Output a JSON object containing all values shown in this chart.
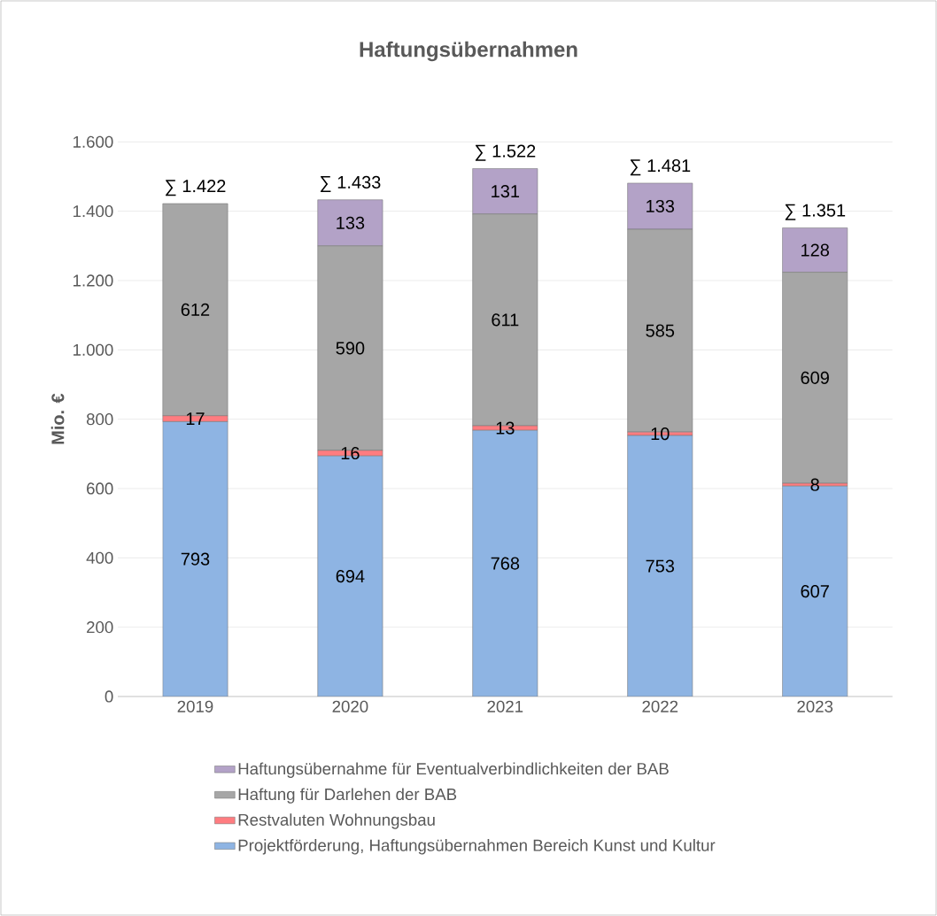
{
  "chart_data": {
    "type": "bar",
    "title": "Haftungsübernahmen",
    "ylabel": "Mio. €",
    "stacked": true,
    "categories": [
      "2019",
      "2020",
      "2021",
      "2022",
      "2023"
    ],
    "series": [
      {
        "name": "Projektförderung, Haftungsübernahmen Bereich Kunst und Kultur",
        "color": "#8eb4e3",
        "values": [
          793,
          694,
          768,
          753,
          607
        ]
      },
      {
        "name": "Restvaluten Wohnungsbau",
        "color": "#ff7c80",
        "values": [
          17,
          16,
          13,
          10,
          8
        ]
      },
      {
        "name": "Haftung für Darlehen der BAB",
        "color": "#a6a6a6",
        "values": [
          612,
          590,
          611,
          585,
          609
        ]
      },
      {
        "name": "Haftungsübernahme für Eventualverbindlichkeiten der BAB",
        "color": "#b3a2c7",
        "values": [
          null,
          133,
          131,
          133,
          128
        ]
      }
    ],
    "totals": [
      "∑ 1.422",
      "∑ 1.433",
      "∑ 1.522",
      "∑ 1.481",
      "∑ 1.351"
    ],
    "ylim": [
      0,
      1600
    ],
    "yticks": [
      0,
      200,
      400,
      600,
      800,
      {
        "value": 1000,
        "label": "1.000"
      },
      {
        "value": 1200,
        "label": "1.200"
      },
      {
        "value": 1400,
        "label": "1.400"
      },
      {
        "value": 1600,
        "label": "1.600"
      }
    ],
    "grid": "y",
    "legend": "bottom",
    "data_labels": true
  }
}
